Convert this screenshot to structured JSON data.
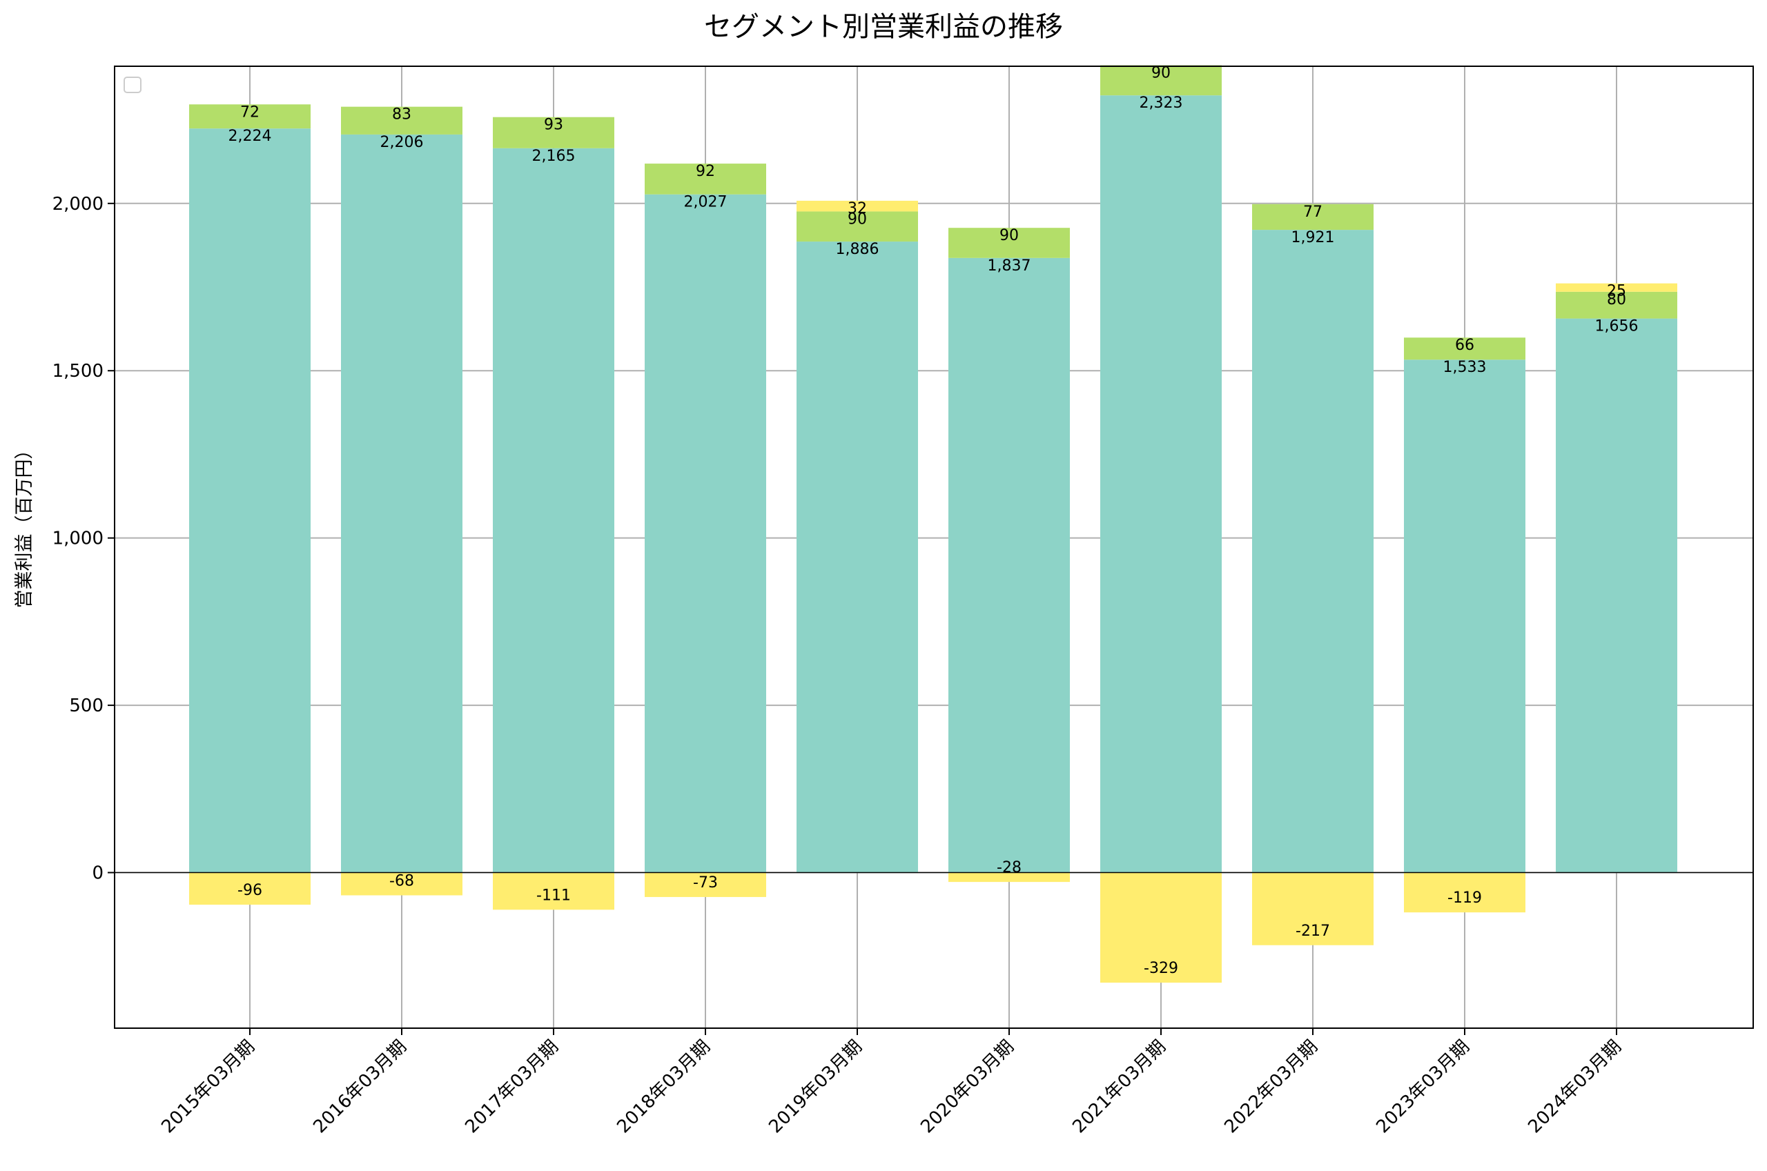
{
  "chart_data": {
    "type": "bar",
    "stacked": true,
    "title": "セグメント別営業利益の推移",
    "xlabel": "",
    "ylabel": "営業利益（百万円）",
    "ylim": [
      -465,
      2410
    ],
    "yticks": [
      0,
      500,
      1000,
      1500,
      2000
    ],
    "ytick_labels": [
      "0",
      "500",
      "1,000",
      "1,500",
      "2,000"
    ],
    "grid": true,
    "legend": "top-left (empty)",
    "categories": [
      "2015年03月期",
      "2016年03月期",
      "2017年03月期",
      "2018年03月期",
      "2019年03月期",
      "2020年03月期",
      "2021年03月期",
      "2022年03月期",
      "2023年03月期",
      "2024年03月期"
    ],
    "series": [
      {
        "color": "#8dd3c7",
        "values": [
          2224,
          2206,
          2165,
          2027,
          1886,
          1837,
          2323,
          1921,
          1533,
          1656
        ],
        "labels": [
          "2,224",
          "2,206",
          "2,165",
          "2,027",
          "1,886",
          "1,837",
          "2,323",
          "1,921",
          "1,533",
          "1,656"
        ]
      },
      {
        "color": "#b3de69",
        "values": [
          72,
          83,
          93,
          92,
          90,
          90,
          90,
          77,
          66,
          80
        ],
        "labels": [
          "72",
          "83",
          "93",
          "92",
          "90",
          "90",
          "90",
          "77",
          "66",
          "80"
        ]
      },
      {
        "color": "#ffed6f",
        "values": [
          -96,
          -68,
          -111,
          -73,
          32,
          -28,
          -329,
          -217,
          -119,
          25
        ],
        "labels": [
          "-96",
          "-68",
          "-111",
          "-73",
          "32",
          "-28",
          "-329",
          "-217",
          "-119",
          "25"
        ]
      }
    ]
  }
}
